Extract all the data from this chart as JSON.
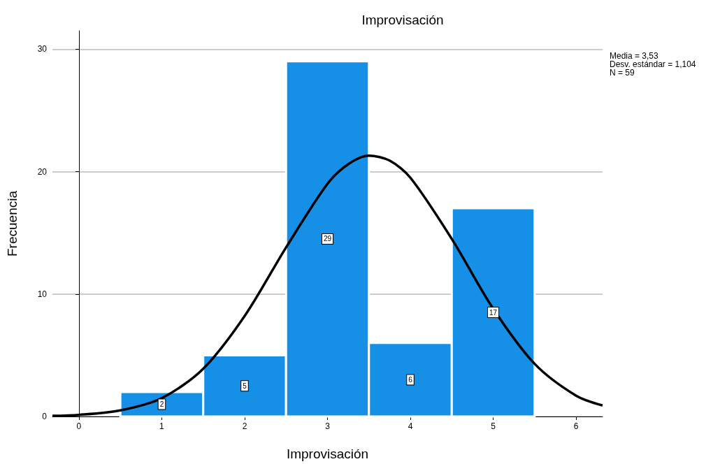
{
  "chart_data": {
    "type": "histogram",
    "title": "Improvisación",
    "xlabel": "Improvisación",
    "ylabel": "Frecuencia",
    "bins": [
      0.5,
      1.5,
      2.5,
      3.5,
      4.5,
      5.5
    ],
    "values": [
      2,
      5,
      29,
      6,
      17
    ],
    "color": "#1690e6",
    "value_labels": [
      "2",
      "5",
      "29",
      "6",
      "17"
    ],
    "series": [
      {
        "type": "line",
        "color": "#000000",
        "x": [
          -0.32,
          0,
          0.5,
          1,
          1.5,
          2,
          2.5,
          3,
          3.25,
          3.5,
          3.75,
          4,
          4.5,
          5,
          5.5,
          6,
          6.32
        ],
        "values": [
          0.05,
          0.13,
          0.5,
          1.5,
          3.9,
          8.2,
          13.8,
          19.0,
          20.6,
          21.3,
          20.9,
          19.5,
          14.5,
          8.8,
          4.3,
          1.7,
          0.9
        ]
      }
    ],
    "xlim": [
      -0.32,
      6.32
    ],
    "xticks": [
      0,
      1,
      2,
      3,
      4,
      5,
      6
    ],
    "ylim": [
      0,
      31.5
    ],
    "yticks": [
      0,
      10,
      20,
      30
    ],
    "grid": "y",
    "annotations": [
      "Media = 3,53",
      "Desv. estándar = 1,104",
      "N = 59"
    ]
  }
}
